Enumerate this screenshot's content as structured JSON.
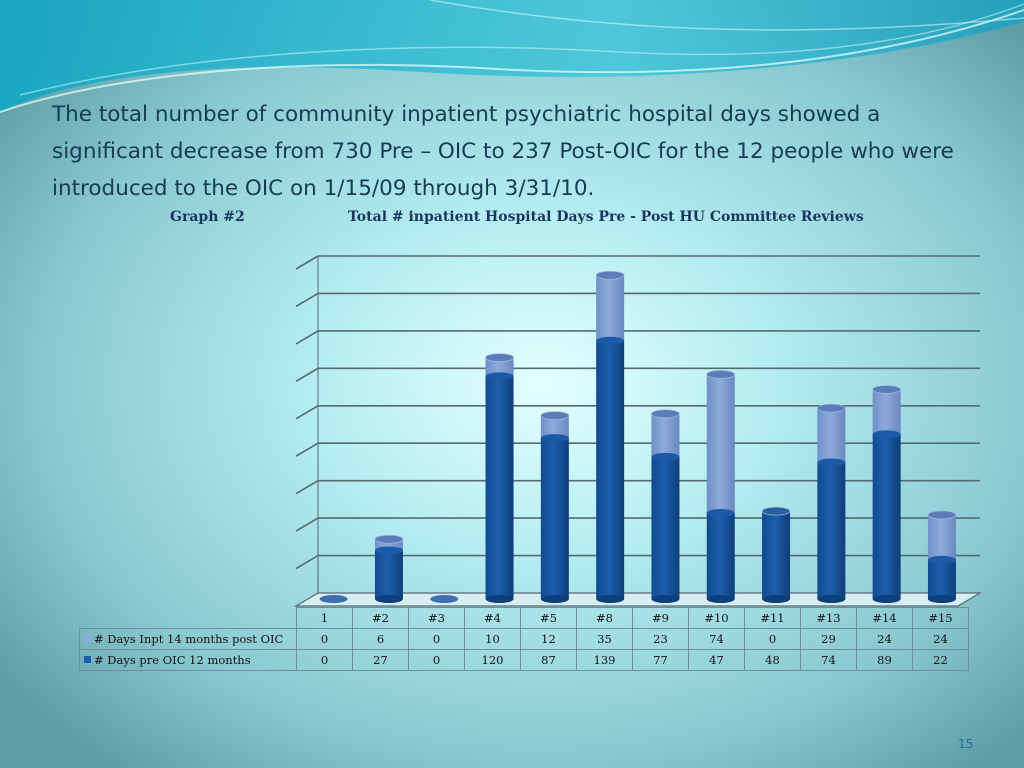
{
  "slide": {
    "text": " The total number of community inpatient psychiatric hospital days showed a significant decrease from 730 Pre – OIC to 237 Post-OIC for the 12 people who were introduced to the  OIC on 1/15/09 through 3/31/10.",
    "graph_label": "Graph #2",
    "page_number": "15"
  },
  "colors": {
    "pre": "#1d5fad",
    "post": "#8eaadc",
    "background": "#9fd4dc",
    "wave": "#3fb8cc"
  },
  "chart_data": {
    "type": "bar",
    "stacked": true,
    "title": "Total # inpatient Hospital Days Pre - Post HU Committee Reviews",
    "categories": [
      "1",
      "#2",
      "#3",
      "#4",
      "#5",
      "#8",
      "#9",
      "#10",
      "#11",
      "#13",
      "#14",
      "#15"
    ],
    "series": [
      {
        "name": "# Days  pre OIC 12 months",
        "values": [
          0,
          27,
          0,
          120,
          87,
          139,
          77,
          47,
          48,
          74,
          89,
          22
        ],
        "color": "#1d5fad"
      },
      {
        "name": "# Days Inpt 14 months post OIC",
        "values": [
          0,
          6,
          0,
          10,
          12,
          35,
          23,
          74,
          0,
          29,
          24,
          24
        ],
        "color": "#8eaadc"
      }
    ],
    "ylim": [
      0,
      180
    ],
    "gridlines": 9,
    "data_table": true
  }
}
